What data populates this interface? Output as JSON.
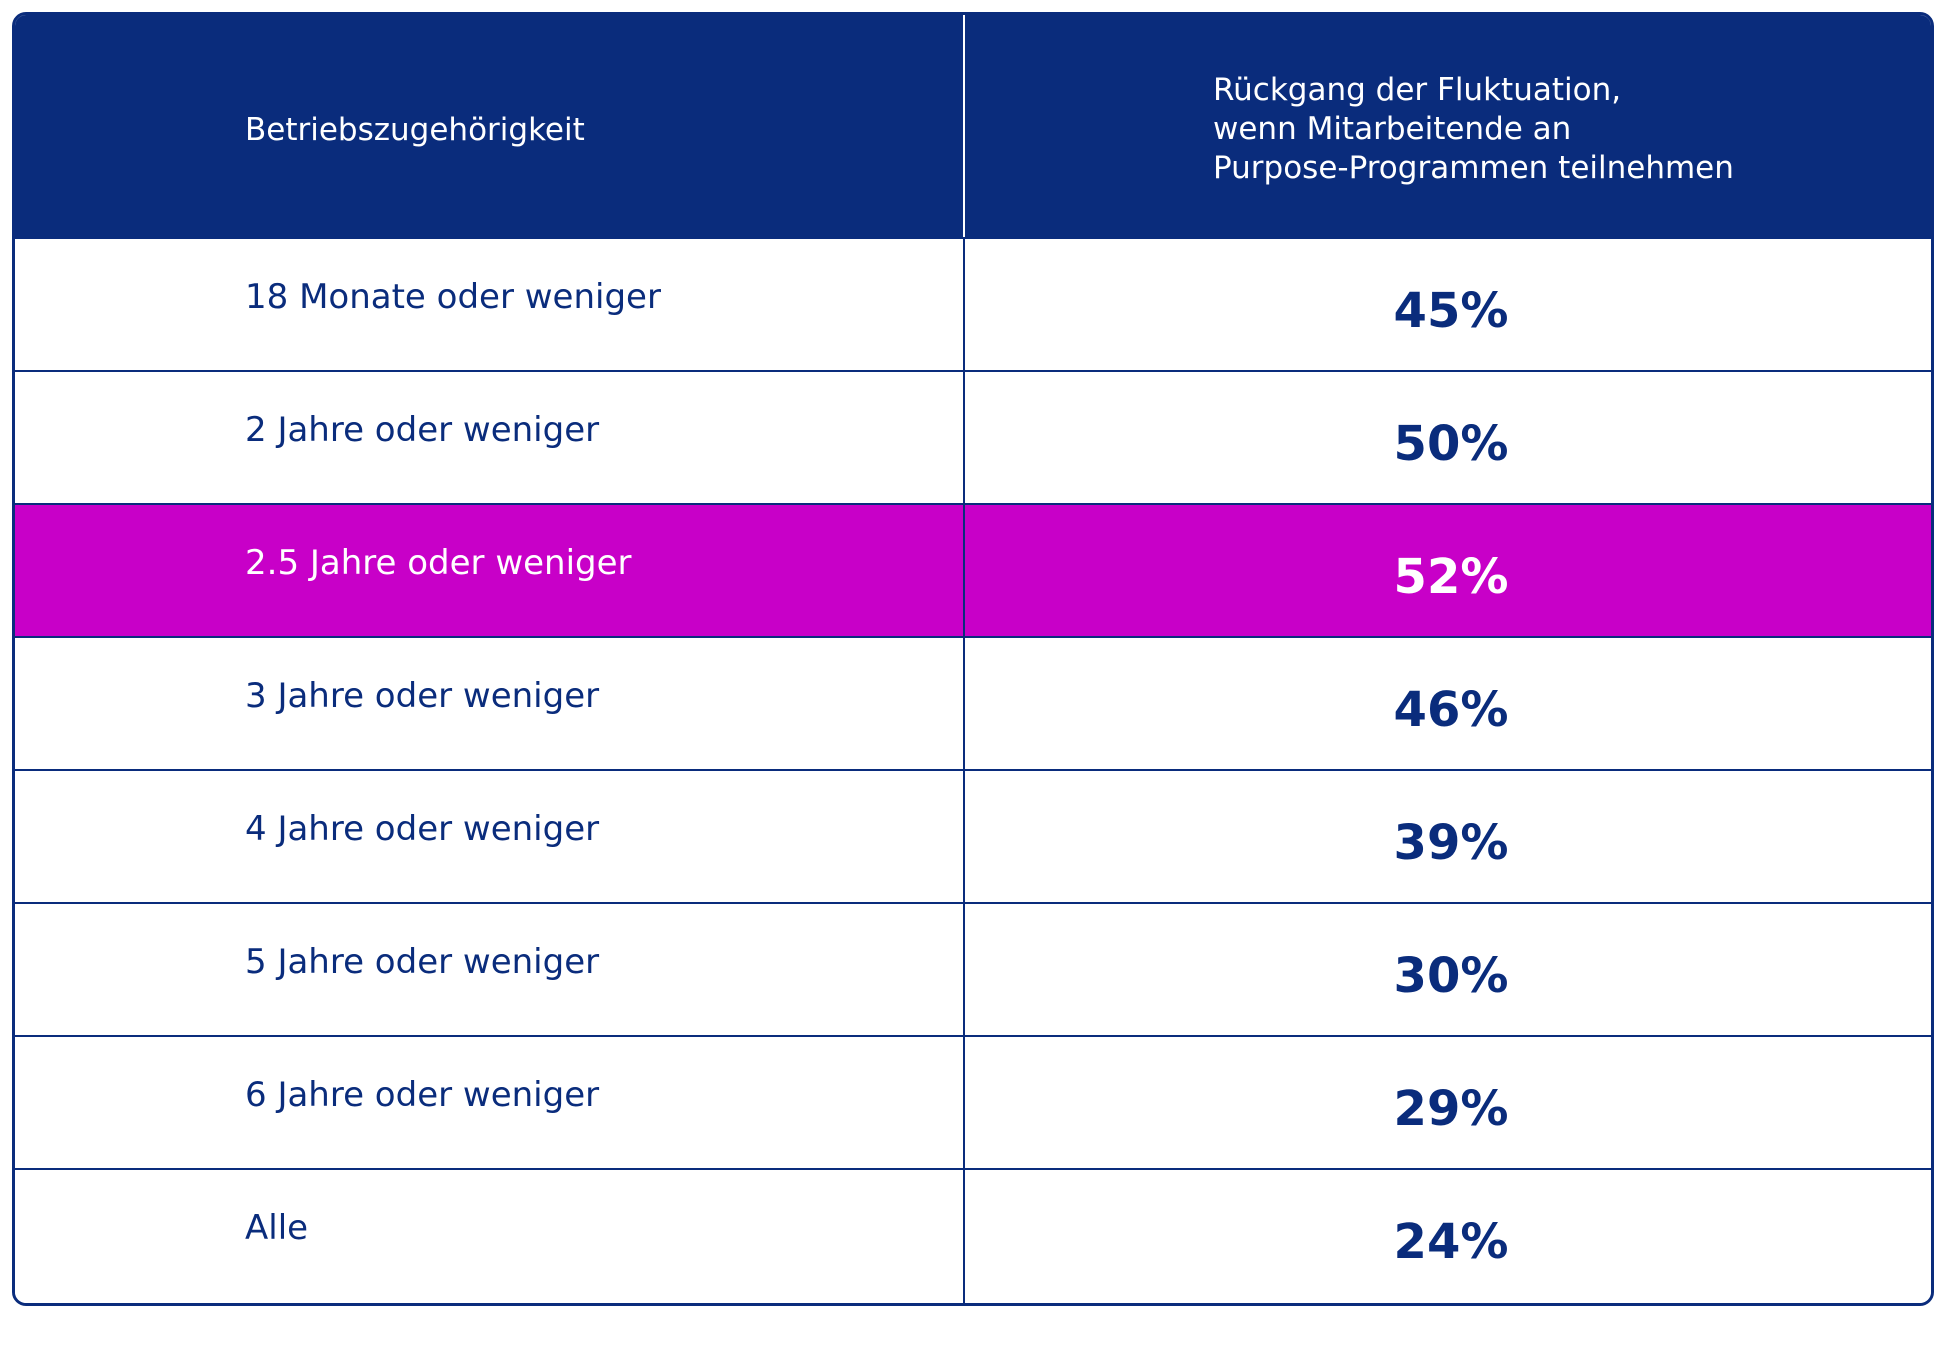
{
  "chart_data": {
    "type": "table",
    "columns": [
      "Betriebszugehörigkeit",
      "Rückgang der Fluktuation, wenn Mitarbeitende an Purpose-Programmen teilnehmen"
    ],
    "header": {
      "left": "Betriebszugehörigkeit",
      "right_lines": [
        "Rückgang der Fluktuation,",
        "wenn Mitarbeitende an",
        "Purpose-Programmen teilnehmen"
      ]
    },
    "rows": [
      {
        "label": "18 Monate oder weniger",
        "value": "45%",
        "highlight": false
      },
      {
        "label": "2 Jahre oder weniger",
        "value": "50%",
        "highlight": false
      },
      {
        "label": "2.5 Jahre oder weniger",
        "value": "52%",
        "highlight": true
      },
      {
        "label": "3 Jahre oder weniger",
        "value": "46%",
        "highlight": false
      },
      {
        "label": "4 Jahre oder weniger",
        "value": "39%",
        "highlight": false
      },
      {
        "label": "5 Jahre oder weniger",
        "value": "30%",
        "highlight": false
      },
      {
        "label": "6 Jahre oder weniger",
        "value": "29%",
        "highlight": false
      },
      {
        "label": "Alle",
        "value": "24%",
        "highlight": false
      }
    ],
    "colors": {
      "header_bg": "#0a2c7c",
      "text": "#0a2c7c",
      "highlight_bg": "#c800c8",
      "highlight_text": "#ffffff"
    }
  }
}
